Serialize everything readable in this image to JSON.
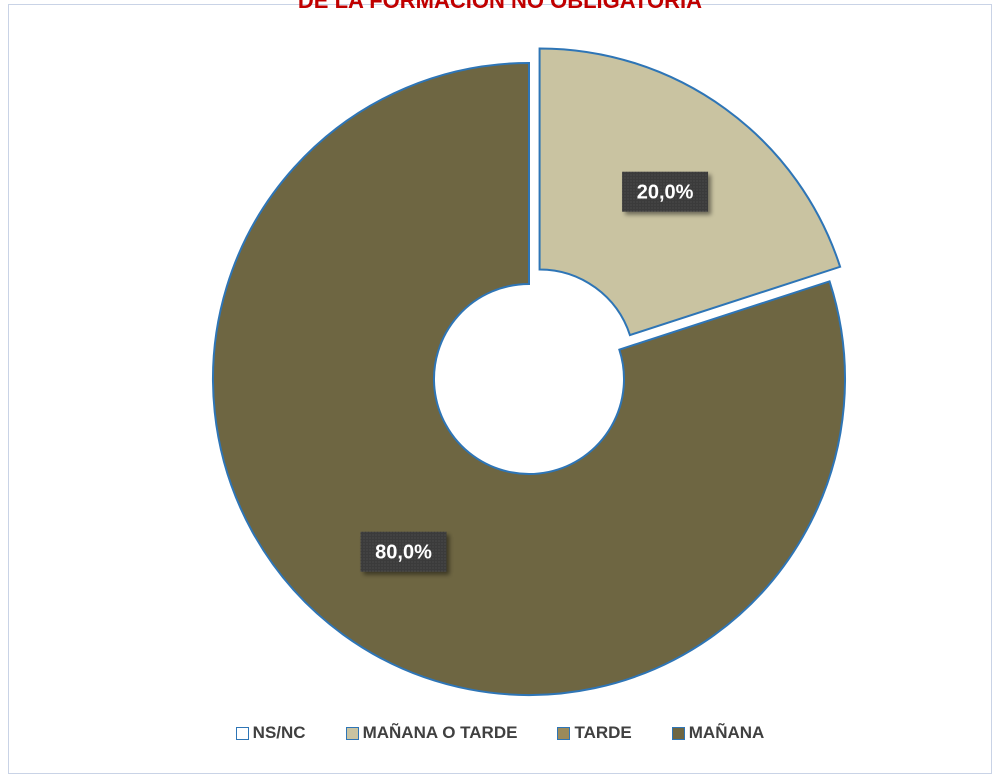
{
  "chart_data": {
    "type": "pie",
    "title": "DE LA FORMACIÓN NO OBLIGATORIA",
    "categories": [
      "NS/NC",
      "MAÑANA O TARDE",
      "TARDE",
      "MAÑANA"
    ],
    "values": [
      0,
      20.0,
      0,
      80.0
    ],
    "value_labels": [
      "",
      "20,0%",
      "",
      "80,0%"
    ],
    "colors": [
      "#ffffff",
      "#c9c3a1",
      "#9b8a5a",
      "#6e6642"
    ],
    "edge_color": "#2e75b6",
    "legend_position": "bottom",
    "donut": true
  }
}
